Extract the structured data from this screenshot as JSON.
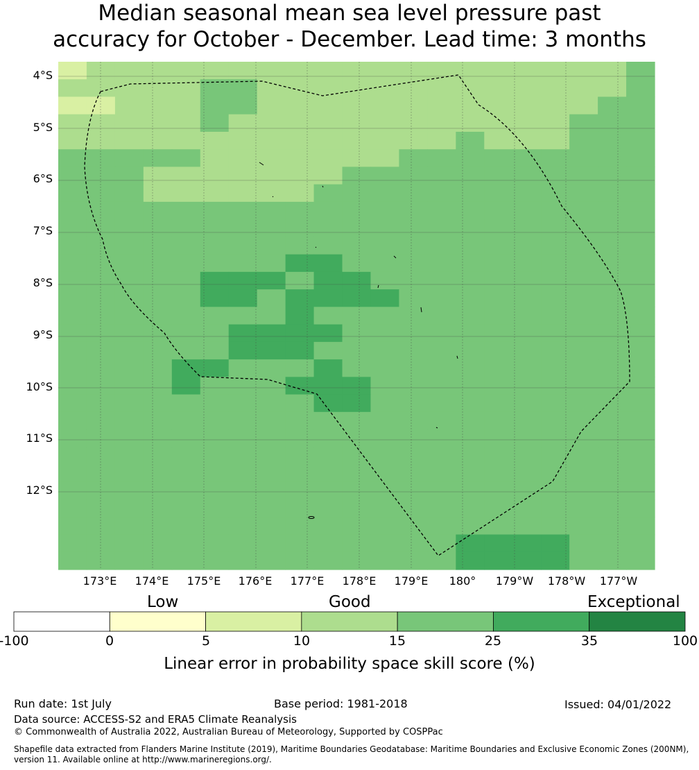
{
  "title": {
    "line1": "Median seasonal mean sea level pressure past",
    "line2": "accuracy for October - December. Lead time: 3 months"
  },
  "axes": {
    "lat_labels": [
      "4°S",
      "5°S",
      "6°S",
      "7°S",
      "8°S",
      "9°S",
      "10°S",
      "11°S",
      "12°S"
    ],
    "lon_labels": [
      "173°E",
      "174°E",
      "175°E",
      "176°E",
      "177°E",
      "178°E",
      "179°E",
      "180°",
      "179°W",
      "178°W",
      "177°W"
    ]
  },
  "legend": {
    "categories": [
      "Low",
      "Good",
      "Exceptional"
    ],
    "ticks": [
      "-100",
      "0",
      "5",
      "10",
      "15",
      "25",
      "35",
      "100"
    ],
    "colors": [
      "#ffffff",
      "#ffffcc",
      "#d9f0a3",
      "#addd8e",
      "#78c679",
      "#41ab5d",
      "#238443"
    ],
    "title": "Linear error in probability space skill score (%)"
  },
  "footer": {
    "run_date": "Run date: 1st July",
    "base_period": "Base period: 1981-2018",
    "issued": "Issued: 04/01/2022",
    "data_source": "Data source: ACCESS-S2 and ERA5 Climate Reanalysis",
    "copyright": "© Commonwealth of Australia 2022, Australian Bureau of Meteorology, Supported by COSPPac",
    "shapefile": "Shapefile data extracted from Flanders Marine Institute (2019), Maritime Boundaries Geodatabase: Maritime Boundaries and Exclusive Economic Zones (200NM), version 11. Available online at http://www.marineregions.org/."
  },
  "map_data": {
    "grid_legend": "0:5-10, 1:10-15, 2:15-25, 3:25-35",
    "grid": [
      "011111111111111111112",
      "111112211111111111112",
      "001112211111111111122",
      "111112111111111111222",
      "111111111111112111222",
      "222221111111222222222",
      "222111111122222222222",
      "222111111222222222222",
      "222222222222222222222",
      "222222222222222222222",
      "222222222222222222222",
      "222222223322222222222",
      "222223332332222222222",
      "222223323333222222222",
      "222222223222222222222",
      "222222333322222222222",
      "222222333222222222222",
      "222233222322222222222",
      "222232223332222222222",
      "222222222332222222222",
      "222222222222222222222",
      "222222222222222222222",
      "222222222222222222222",
      "222222222222222222222",
      "222222222222222222222",
      "222222222222222222222",
      "222222222222222222222",
      "222222222222223333222",
      "222222222222223333222"
    ]
  }
}
